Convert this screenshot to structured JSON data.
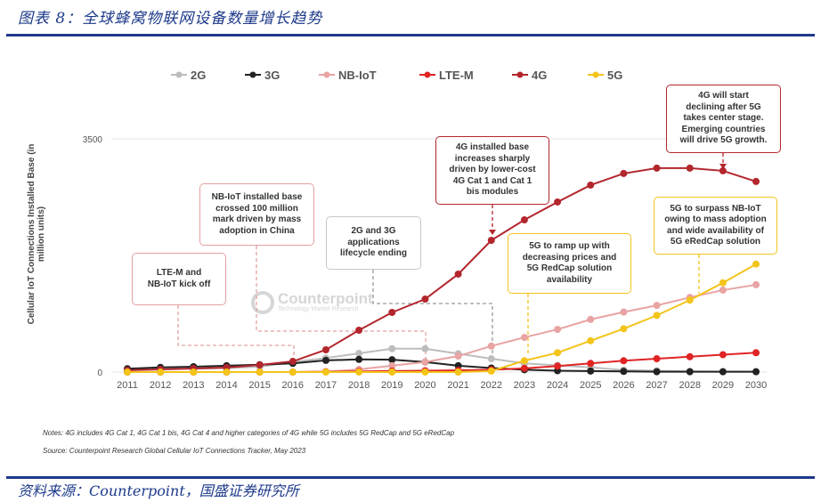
{
  "header": {
    "title": "图表 8：全球蜂窝物联网设备数量增长趋势"
  },
  "footer": {
    "source": "资料来源：Counterpoint，国盛证券研究所"
  },
  "notes": {
    "note": "Notes: 4G includes 4G Cat 1, 4G Cat 1 bis, 4G Cat 4 and higher categories of 4G while 5G includes 5G RedCap and 5G eRedCap",
    "source": "Source: Counterpoint Research Global Cellular IoT Connections Tracker, May 2023"
  },
  "watermark": {
    "name": "Counterpoint",
    "tagline": "Technology Market Research"
  },
  "chart_data": {
    "type": "line",
    "title": "",
    "xlabel": "",
    "ylabel": "Cellular IoT Connections Installed Base (in million units)",
    "ylim": [
      0,
      3500
    ],
    "yticks": [
      "0",
      "3500"
    ],
    "grid": true,
    "legend_position": "top",
    "x": [
      "2011",
      "2012",
      "2013",
      "2014",
      "2015",
      "2016",
      "2017",
      "2018",
      "2019",
      "2020",
      "2021",
      "2022",
      "2023",
      "2024",
      "2025",
      "2026",
      "2027",
      "2028",
      "2029",
      "2030"
    ],
    "series": [
      {
        "name": "2G",
        "color": "#bdbdbd",
        "values": [
          30,
          40,
          50,
          60,
          80,
          150,
          210,
          280,
          350,
          350,
          275,
          200,
          130,
          100,
          70,
          30,
          20,
          10,
          5,
          5
        ]
      },
      {
        "name": "3G",
        "color": "#222222",
        "values": [
          50,
          70,
          80,
          95,
          110,
          130,
          175,
          190,
          185,
          150,
          95,
          60,
          35,
          20,
          15,
          10,
          5,
          5,
          5,
          5
        ]
      },
      {
        "name": "NB-IoT",
        "color": "#e8a3a3",
        "values": [
          0,
          0,
          0,
          0,
          0,
          0,
          5,
          40,
          95,
          150,
          240,
          390,
          520,
          640,
          790,
          900,
          1000,
          1120,
          1230,
          1310
        ]
      },
      {
        "name": "LTE-M",
        "color": "#e02424",
        "values": [
          0,
          0,
          0,
          0,
          0,
          0,
          5,
          10,
          15,
          20,
          25,
          35,
          55,
          90,
          130,
          170,
          200,
          230,
          260,
          290
        ]
      },
      {
        "name": "4G",
        "color": "#b3262d",
        "values": [
          27,
          40,
          53,
          67,
          107,
          160,
          334,
          628,
          895,
          1095,
          1470,
          1977,
          2284,
          2552,
          2806,
          2980,
          3060,
          3060,
          3020,
          2860
        ]
      },
      {
        "name": "5G",
        "color": "#f3c41a",
        "values": [
          0,
          0,
          0,
          0,
          0,
          0,
          0,
          0,
          0,
          0,
          0,
          15,
          170,
          290,
          470,
          650,
          850,
          1080,
          1340,
          1620
        ]
      }
    ],
    "annotations": [
      {
        "text": "LTE-M and\nNB-IoT kick off",
        "color": "#e3a0a0"
      },
      {
        "text": "NB-IoT installed base\ncrossed 100 million\nmark driven by mass\nadoption in China",
        "color": "#e3a0a0"
      },
      {
        "text": "2G and 3G\napplications\nlifecycle ending",
        "color": "#c8c8c8"
      },
      {
        "text": "4G installed base\nincreases sharply\ndriven by lower-cost\n4G Cat 1 and Cat 1\nbis modules",
        "color": "#b3262d"
      },
      {
        "text": "5G to ramp up with\ndecreasing prices and\n5G RedCap solution\navailability",
        "color": "#f3c41a"
      },
      {
        "text": "5G to surpass NB-IoT\nowing to mass adoption\nand wide availability of\n5G eRedCap solution",
        "color": "#f3c41a"
      },
      {
        "text": "4G will start\ndeclining after 5G\ntakes center stage.\nEmerging countries\nwill drive 5G growth.",
        "color": "#b3262d"
      }
    ]
  }
}
